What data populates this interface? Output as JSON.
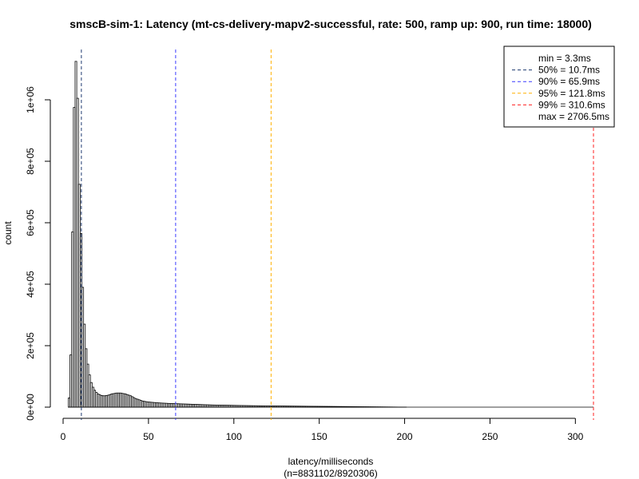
{
  "chart_data": {
    "type": "bar",
    "title": "smscB-sim-1: Latency (mt-cs-delivery-mapv2-successful, rate: 500, ramp up: 900, run time: 18000)",
    "xlabel": "latency/milliseconds",
    "xlabel2": "(n=8831102/8920306)",
    "ylabel": "count",
    "xlim": [
      0,
      310.6
    ],
    "ylim": [
      0,
      1120000
    ],
    "x_ticks": [
      0,
      50,
      100,
      150,
      200,
      250,
      300
    ],
    "x_tick_labels": [
      "0",
      "50",
      "100",
      "150",
      "200",
      "250",
      "300"
    ],
    "y_ticks": [
      0,
      200000,
      400000,
      600000,
      800000,
      1000000
    ],
    "y_tick_labels": [
      "0e+00",
      "2e+05",
      "4e+05",
      "6e+05",
      "8e+05",
      "1e+06"
    ],
    "bin_width": 1,
    "bins_start": 3,
    "values": [
      30000,
      170000,
      570000,
      975000,
      1125000,
      1005000,
      725000,
      565000,
      390000,
      270000,
      190000,
      140000,
      105000,
      80000,
      65000,
      55000,
      48000,
      43000,
      40000,
      38000,
      37000,
      37000,
      38000,
      39000,
      41000,
      43000,
      44000,
      45000,
      46000,
      46000,
      46000,
      45000,
      44000,
      43000,
      41000,
      39000,
      37000,
      34000,
      31000,
      28000,
      26000,
      24000,
      22000,
      20000,
      19000,
      18000,
      17000,
      16500,
      16000,
      15500,
      15000,
      14500,
      14000,
      13700,
      13400,
      13100,
      12800,
      12500,
      12200,
      12000,
      11800,
      11600,
      11400,
      11200,
      11000,
      10800,
      10600,
      10400,
      10200,
      10000,
      9800,
      9600,
      9400,
      9200,
      9000,
      8800,
      8600,
      8400,
      8200,
      8000,
      7800,
      7600,
      7400,
      7200,
      7000,
      6900,
      6800,
      6700,
      6600,
      6500,
      6400,
      6300,
      6200,
      6100,
      6000,
      5900,
      5800,
      5700,
      5600,
      5500,
      5400,
      5300,
      5200,
      5100,
      5000,
      4900,
      4800,
      4700,
      4600,
      4500,
      4400,
      4350,
      4300,
      4250,
      4200,
      4150,
      4100,
      4050,
      4000,
      3950,
      3900,
      3850,
      3800,
      3750,
      3700,
      3650,
      3600,
      3550,
      3500,
      3450,
      3400,
      3350,
      3300,
      3250,
      3200,
      3150,
      3100,
      3050,
      3000,
      2950,
      2900,
      2850,
      2800,
      2750,
      2700,
      2650,
      2600,
      2550,
      2500,
      2450,
      2400,
      2350,
      2300,
      2250,
      2200,
      2150,
      2100,
      2050,
      2000,
      1950,
      1900,
      1850,
      1800,
      1750,
      1700,
      1650,
      1600,
      1550,
      1500,
      1450,
      1400,
      1350,
      1300,
      1250,
      1200,
      1150,
      1100,
      1050,
      1000,
      950,
      900,
      850,
      800,
      750,
      700,
      650,
      600,
      550,
      500,
      450,
      400,
      350,
      300,
      250,
      200,
      150,
      100,
      50,
      0
    ],
    "markers": [
      {
        "label": "50% = 10.7ms",
        "x": 10.7,
        "color": "#1f3a70"
      },
      {
        "label": "90% = 65.9ms",
        "x": 65.9,
        "color": "#3a3aff"
      },
      {
        "label": "95% = 121.8ms",
        "x": 121.8,
        "color": "#ffb000"
      },
      {
        "label": "99% = 310.6ms",
        "x": 310.6,
        "color": "#ff2020"
      }
    ],
    "legend": {
      "position": "top-right",
      "entries": [
        {
          "label": "min = 3.3ms",
          "color": null
        },
        {
          "label": "50% = 10.7ms",
          "color": "#1f3a70"
        },
        {
          "label": "90% = 65.9ms",
          "color": "#3a3aff"
        },
        {
          "label": "95% = 121.8ms",
          "color": "#ffb000"
        },
        {
          "label": "99% = 310.6ms",
          "color": "#ff2020"
        },
        {
          "label": "max = 2706.5ms",
          "color": null
        }
      ]
    }
  }
}
